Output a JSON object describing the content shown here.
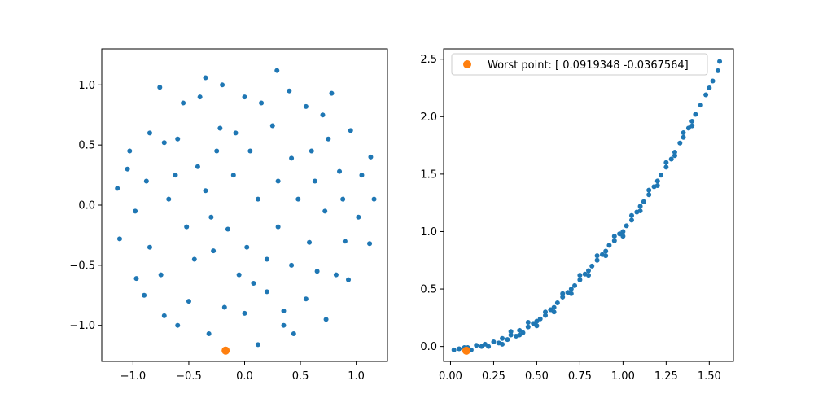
{
  "chart_data": [
    {
      "type": "scatter",
      "title": "",
      "xlabel": "",
      "ylabel": "",
      "xlim": [
        -1.28,
        1.28
      ],
      "ylim": [
        -1.3,
        1.3
      ],
      "xticks": [
        -1.0,
        -0.5,
        0.0,
        0.5,
        1.0
      ],
      "xtick_labels": [
        "−1.0",
        "−0.5",
        "0.0",
        "0.5",
        "1.0"
      ],
      "yticks": [
        -1.0,
        -0.5,
        0.0,
        0.5,
        1.0
      ],
      "ytick_labels": [
        "−1.0",
        "−0.5",
        "0.0",
        "0.5",
        "1.0"
      ],
      "grid": false,
      "series": [
        {
          "color": "#1f77b4",
          "points": [
            [
              -0.85,
              0.6
            ],
            [
              -0.76,
              0.98
            ],
            [
              -0.35,
              1.06
            ],
            [
              0.29,
              1.12
            ],
            [
              0.78,
              0.93
            ],
            [
              0.95,
              0.62
            ],
            [
              1.13,
              0.4
            ],
            [
              1.16,
              0.05
            ],
            [
              1.12,
              -0.32
            ],
            [
              0.93,
              -0.62
            ],
            [
              0.73,
              -0.95
            ],
            [
              0.44,
              -1.07
            ],
            [
              0.12,
              -1.16
            ],
            [
              -0.32,
              -1.07
            ],
            [
              -0.72,
              -0.92
            ],
            [
              -0.97,
              -0.61
            ],
            [
              -1.12,
              -0.28
            ],
            [
              -1.14,
              0.14
            ],
            [
              -1.03,
              0.45
            ],
            [
              -0.6,
              0.55
            ],
            [
              -0.42,
              0.32
            ],
            [
              -0.22,
              0.64
            ],
            [
              0.05,
              0.45
            ],
            [
              0.25,
              0.66
            ],
            [
              0.42,
              0.39
            ],
            [
              0.63,
              0.2
            ],
            [
              0.72,
              -0.05
            ],
            [
              0.58,
              -0.31
            ],
            [
              0.42,
              -0.5
            ],
            [
              0.2,
              -0.72
            ],
            [
              -0.05,
              -0.58
            ],
            [
              -0.28,
              -0.38
            ],
            [
              -0.52,
              -0.18
            ],
            [
              -0.68,
              0.05
            ],
            [
              -0.35,
              0.12
            ],
            [
              -0.1,
              0.25
            ],
            [
              0.12,
              0.05
            ],
            [
              0.3,
              -0.18
            ],
            [
              -0.15,
              -0.2
            ],
            [
              0.02,
              -0.35
            ],
            [
              0.85,
              0.28
            ],
            [
              0.9,
              -0.3
            ],
            [
              -0.85,
              -0.35
            ],
            [
              -0.88,
              0.2
            ],
            [
              0.55,
              0.82
            ],
            [
              -0.55,
              0.85
            ],
            [
              0.55,
              -0.78
            ],
            [
              -0.5,
              -0.8
            ],
            [
              0.0,
              0.9
            ],
            [
              0.0,
              -0.9
            ],
            [
              1.02,
              -0.1
            ],
            [
              -0.98,
              -0.05
            ],
            [
              0.15,
              0.85
            ],
            [
              -0.18,
              -0.85
            ],
            [
              0.35,
              -0.88
            ],
            [
              -0.4,
              0.9
            ],
            [
              0.75,
              0.55
            ],
            [
              -0.75,
              -0.58
            ],
            [
              0.82,
              -0.58
            ],
            [
              -0.72,
              0.52
            ],
            [
              0.3,
              0.2
            ],
            [
              -0.3,
              -0.1
            ],
            [
              0.48,
              0.05
            ],
            [
              -0.45,
              -0.45
            ],
            [
              0.65,
              -0.55
            ],
            [
              -0.62,
              0.25
            ],
            [
              0.2,
              -0.45
            ],
            [
              -0.08,
              0.6
            ],
            [
              0.08,
              -0.65
            ],
            [
              0.6,
              0.45
            ],
            [
              -0.25,
              0.45
            ],
            [
              0.88,
              0.05
            ],
            [
              -1.05,
              0.3
            ],
            [
              1.05,
              0.25
            ],
            [
              0.4,
              0.95
            ],
            [
              -0.2,
              1.0
            ],
            [
              0.35,
              -1.0
            ],
            [
              -0.6,
              -1.0
            ],
            [
              0.7,
              0.75
            ],
            [
              -0.9,
              -0.75
            ]
          ]
        },
        {
          "color": "#ff7f0e",
          "points": [
            [
              -0.17,
              -1.21
            ]
          ]
        }
      ]
    },
    {
      "type": "scatter",
      "title": "",
      "xlabel": "",
      "ylabel": "",
      "xlim": [
        -0.04,
        1.64
      ],
      "ylim": [
        -0.13,
        2.59
      ],
      "xticks": [
        0.0,
        0.25,
        0.5,
        0.75,
        1.0,
        1.25,
        1.5
      ],
      "xtick_labels": [
        "0.00",
        "0.25",
        "0.50",
        "0.75",
        "1.00",
        "1.25",
        "1.50"
      ],
      "yticks": [
        0.0,
        0.5,
        1.0,
        1.5,
        2.0,
        2.5
      ],
      "ytick_labels": [
        "0.0",
        "0.5",
        "1.0",
        "1.5",
        "2.0",
        "2.5"
      ],
      "grid": false,
      "legend": {
        "placement": "upper-left",
        "entries": [
          "Worst point: [ 0.0919348 -0.0367564]"
        ]
      },
      "series": [
        {
          "color": "#1f77b4",
          "points": [
            [
              0.02,
              -0.03
            ],
            [
              0.05,
              -0.02
            ],
            [
              0.08,
              -0.01
            ],
            [
              0.1,
              -0.01
            ],
            [
              0.12,
              -0.03
            ],
            [
              0.15,
              0.01
            ],
            [
              0.18,
              0.0
            ],
            [
              0.2,
              0.02
            ],
            [
              0.22,
              0.0
            ],
            [
              0.25,
              0.04
            ],
            [
              0.28,
              0.03
            ],
            [
              0.3,
              0.07
            ],
            [
              0.33,
              0.06
            ],
            [
              0.35,
              0.1
            ],
            [
              0.38,
              0.09
            ],
            [
              0.4,
              0.14
            ],
            [
              0.42,
              0.12
            ],
            [
              0.45,
              0.17
            ],
            [
              0.48,
              0.2
            ],
            [
              0.5,
              0.22
            ],
            [
              0.52,
              0.24
            ],
            [
              0.55,
              0.27
            ],
            [
              0.58,
              0.32
            ],
            [
              0.6,
              0.34
            ],
            [
              0.62,
              0.38
            ],
            [
              0.65,
              0.43
            ],
            [
              0.68,
              0.47
            ],
            [
              0.7,
              0.5
            ],
            [
              0.72,
              0.53
            ],
            [
              0.75,
              0.58
            ],
            [
              0.78,
              0.63
            ],
            [
              0.8,
              0.66
            ],
            [
              0.82,
              0.7
            ],
            [
              0.85,
              0.75
            ],
            [
              0.88,
              0.8
            ],
            [
              0.9,
              0.83
            ],
            [
              0.92,
              0.88
            ],
            [
              0.95,
              0.92
            ],
            [
              0.98,
              0.98
            ],
            [
              1.0,
              1.0
            ],
            [
              1.02,
              1.05
            ],
            [
              1.05,
              1.1
            ],
            [
              1.08,
              1.17
            ],
            [
              1.1,
              1.22
            ],
            [
              1.12,
              1.26
            ],
            [
              1.15,
              1.32
            ],
            [
              1.18,
              1.39
            ],
            [
              1.2,
              1.44
            ],
            [
              1.22,
              1.49
            ],
            [
              1.25,
              1.56
            ],
            [
              1.28,
              1.63
            ],
            [
              1.3,
              1.69
            ],
            [
              1.33,
              1.77
            ],
            [
              1.35,
              1.82
            ],
            [
              1.38,
              1.9
            ],
            [
              1.4,
              1.96
            ],
            [
              1.42,
              2.02
            ],
            [
              1.45,
              2.1
            ],
            [
              1.48,
              2.19
            ],
            [
              1.5,
              2.25
            ],
            [
              1.52,
              2.31
            ],
            [
              1.55,
              2.4
            ],
            [
              1.56,
              2.48
            ],
            [
              0.3,
              0.02
            ],
            [
              0.4,
              0.1
            ],
            [
              0.5,
              0.18
            ],
            [
              0.6,
              0.3
            ],
            [
              0.7,
              0.46
            ],
            [
              0.8,
              0.62
            ],
            [
              0.9,
              0.79
            ],
            [
              1.0,
              0.96
            ],
            [
              1.1,
              1.18
            ],
            [
              1.2,
              1.4
            ],
            [
              1.3,
              1.66
            ],
            [
              1.4,
              1.92
            ],
            [
              0.35,
              0.13
            ],
            [
              0.45,
              0.21
            ],
            [
              0.55,
              0.3
            ],
            [
              0.65,
              0.46
            ],
            [
              0.75,
              0.62
            ],
            [
              0.85,
              0.79
            ],
            [
              0.95,
              0.96
            ],
            [
              1.05,
              1.14
            ],
            [
              1.15,
              1.36
            ],
            [
              1.25,
              1.6
            ],
            [
              1.35,
              1.86
            ]
          ]
        },
        {
          "name": "Worst point: [ 0.0919348 -0.0367564]",
          "color": "#ff7f0e",
          "points": [
            [
              0.0919348,
              -0.0367564
            ]
          ]
        }
      ]
    }
  ]
}
